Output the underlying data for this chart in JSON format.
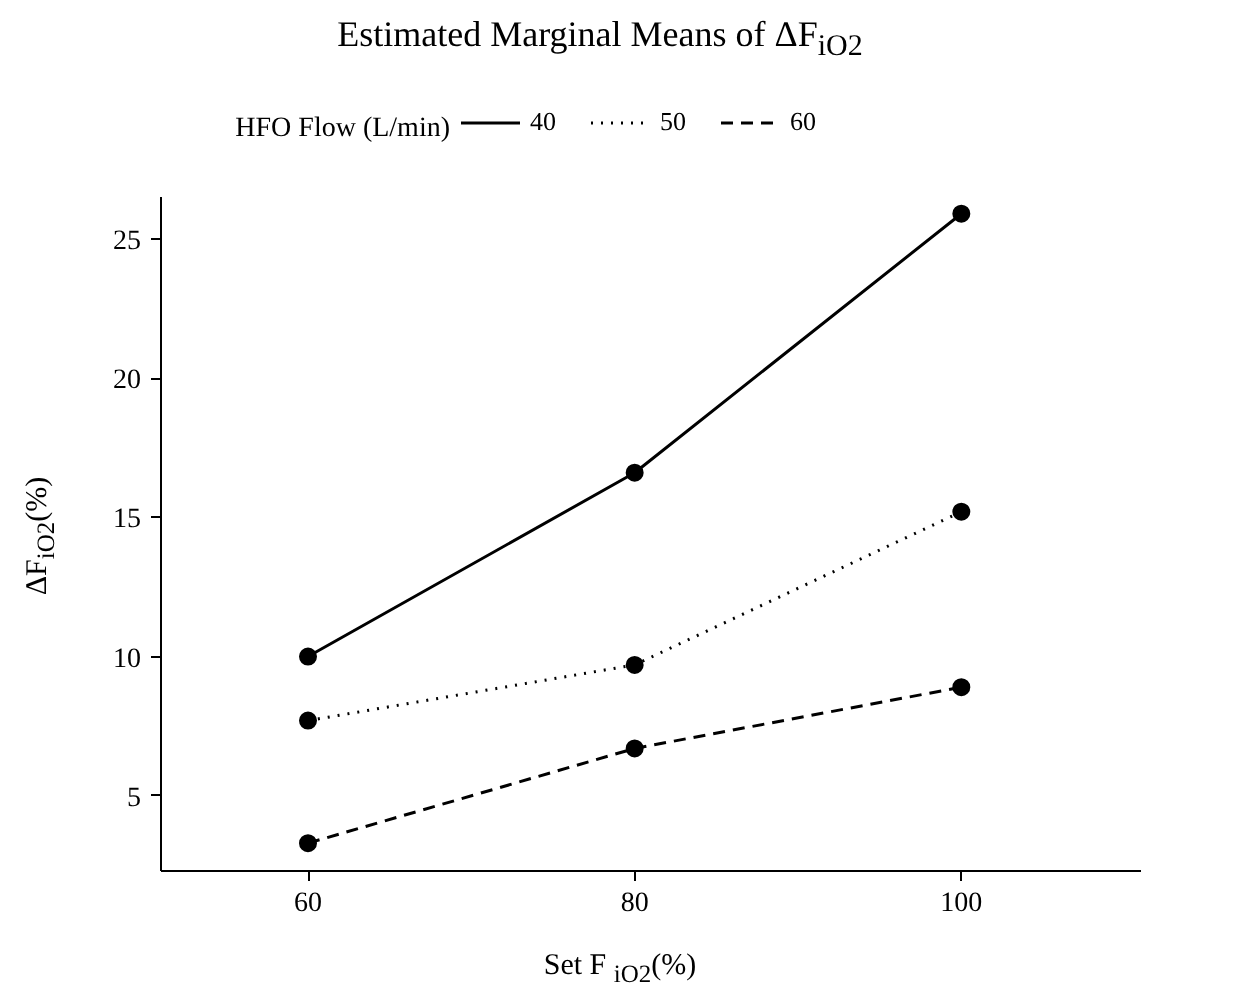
{
  "chart_data": {
    "type": "line",
    "title": "Estimated Marginal Means of ΔF$_{iO2}$",
    "xlabel": "Set F $_{iO2}$(%)",
    "ylabel": "ΔF$_{iO2}$(%)",
    "legend_title": "HFO Flow (L/min)",
    "legend": "top",
    "marker": "circle",
    "grid": false,
    "x": [
      60,
      80,
      100
    ],
    "xlim": [
      51,
      111
    ],
    "xticks": [
      60,
      80,
      100
    ],
    "ylim": [
      2.3,
      26.5
    ],
    "yticks": [
      5,
      10,
      15,
      20,
      25
    ],
    "series": [
      {
        "name": "40",
        "color": "#000000",
        "line_style": "solid",
        "values": [
          10.0,
          16.6,
          25.9
        ]
      },
      {
        "name": "50",
        "color": "#000000",
        "line_style": "dotted",
        "values": [
          7.7,
          9.7,
          15.2
        ]
      },
      {
        "name": "60",
        "color": "#000000",
        "line_style": "dashed",
        "values": [
          3.3,
          6.7,
          8.9
        ]
      }
    ]
  }
}
